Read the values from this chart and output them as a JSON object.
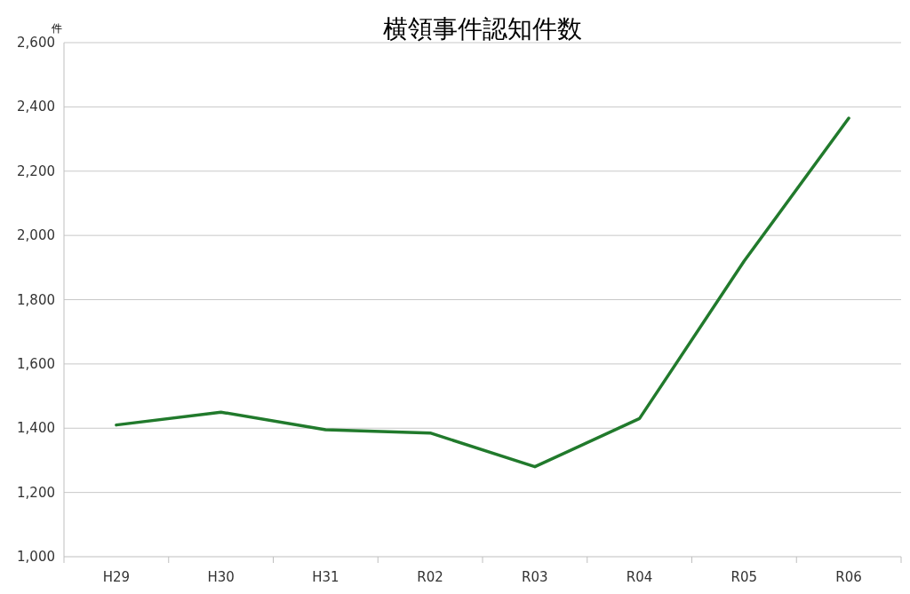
{
  "chart_data": {
    "type": "line",
    "title": "横領事件認知件数",
    "ylabel": "件",
    "categories": [
      "H29",
      "H30",
      "H31",
      "R02",
      "R03",
      "R04",
      "R05",
      "R06"
    ],
    "series": [
      {
        "color": "#217a2c",
        "values": [
          1410,
          1450,
          1395,
          1385,
          1280,
          1430,
          1920,
          2365
        ]
      }
    ],
    "ylim": [
      1000,
      2600
    ],
    "yticks": [
      {
        "value": 1000,
        "label": "1,000"
      },
      {
        "value": 1200,
        "label": "1,200"
      },
      {
        "value": 1400,
        "label": "1,400"
      },
      {
        "value": 1600,
        "label": "1,600"
      },
      {
        "value": 1800,
        "label": "1,800"
      },
      {
        "value": 2000,
        "label": "2,000"
      },
      {
        "value": 2200,
        "label": "2,200"
      },
      {
        "value": 2400,
        "label": "2,400"
      },
      {
        "value": 2600,
        "label": "2,600"
      }
    ],
    "grid": "y",
    "marker": "none",
    "line_style": "solid"
  }
}
